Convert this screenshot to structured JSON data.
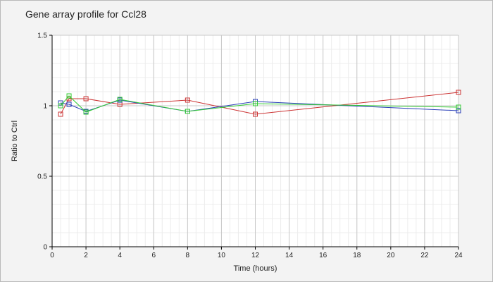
{
  "chart_data": {
    "type": "line",
    "title": "Gene array profile for Ccl28",
    "xlabel": "Time (hours)",
    "ylabel": "Ratio to Ctrl",
    "xlim": [
      0,
      24
    ],
    "ylim": [
      0,
      1.5
    ],
    "xticks": [
      0,
      2,
      4,
      6,
      8,
      10,
      12,
      14,
      16,
      18,
      20,
      22,
      24
    ],
    "yticks": [
      0,
      0.5,
      1,
      1.5
    ],
    "ytick_labels": [
      "0",
      "0.5",
      "1",
      "1.5"
    ],
    "grid": true,
    "series": [
      {
        "color": "#cc3333",
        "x": [
          0.5,
          1,
          2,
          4,
          8,
          12,
          24
        ],
        "y": [
          0.94,
          1.05,
          1.05,
          1.01,
          1.04,
          0.94,
          1.095
        ]
      },
      {
        "color": "#2a3fb8",
        "x": [
          0.5,
          1,
          2,
          4,
          8,
          12,
          24
        ],
        "y": [
          1.02,
          1.01,
          0.96,
          1.04,
          0.96,
          1.03,
          0.965
        ]
      },
      {
        "color": "#33cc33",
        "x": [
          0.5,
          1,
          2,
          4,
          8,
          12,
          24
        ],
        "y": [
          1.0,
          1.07,
          0.955,
          1.045,
          0.96,
          1.015,
          0.99
        ]
      }
    ]
  }
}
